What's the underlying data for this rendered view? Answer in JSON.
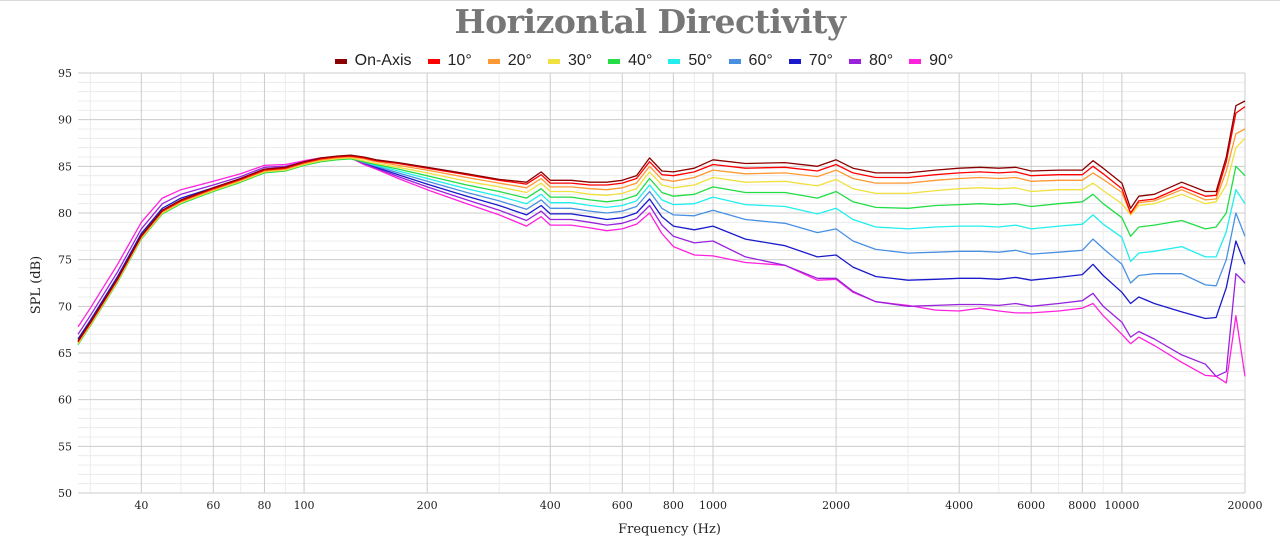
{
  "chart_data": {
    "type": "line",
    "title": "Horizontal Directivity",
    "xlabel": "Frequency (Hz)",
    "ylabel": "SPL (dB)",
    "x_scale": "log",
    "xlim": [
      28,
      20000
    ],
    "ylim": [
      50,
      95
    ],
    "grid": true,
    "legend_position": "top",
    "xticks": [
      40,
      60,
      80,
      100,
      200,
      400,
      600,
      800,
      1000,
      2000,
      4000,
      6000,
      8000,
      10000,
      20000
    ],
    "xtick_labels": [
      "40",
      "60",
      "80",
      "100",
      "200",
      "400",
      "600",
      "800",
      "1000",
      "2000",
      "4000",
      "6000",
      "8000",
      "10000",
      "20000"
    ],
    "yticks": [
      50,
      55,
      60,
      65,
      70,
      75,
      80,
      85,
      90,
      95
    ],
    "ytick_labels": [
      "50",
      "55",
      "60",
      "65",
      "70",
      "75",
      "80",
      "85",
      "90",
      "95"
    ],
    "x": [
      28,
      30,
      35,
      40,
      45,
      50,
      60,
      70,
      80,
      90,
      100,
      110,
      120,
      130,
      140,
      150,
      170,
      200,
      250,
      300,
      350,
      380,
      400,
      450,
      500,
      550,
      600,
      650,
      700,
      750,
      800,
      900,
      1000,
      1200,
      1500,
      1800,
      2000,
      2200,
      2500,
      3000,
      3500,
      4000,
      4500,
      5000,
      5500,
      6000,
      7000,
      8000,
      8500,
      9000,
      10000,
      10500,
      11000,
      12000,
      14000,
      16000,
      17000,
      18000,
      19000,
      20000
    ],
    "series": [
      {
        "name": "On-Axis",
        "color": "#8b0000",
        "values": [
          66.3,
          68.3,
          73.0,
          77.6,
          80.3,
          81.4,
          82.7,
          83.7,
          84.7,
          84.9,
          85.5,
          85.9,
          86.1,
          86.2,
          86.0,
          85.7,
          85.4,
          84.9,
          84.2,
          83.6,
          83.3,
          84.4,
          83.5,
          83.5,
          83.3,
          83.3,
          83.5,
          84.0,
          85.9,
          84.5,
          84.4,
          84.8,
          85.7,
          85.3,
          85.4,
          85.0,
          85.7,
          84.8,
          84.3,
          84.3,
          84.6,
          84.8,
          84.9,
          84.8,
          84.9,
          84.5,
          84.6,
          84.6,
          85.6,
          84.8,
          83.2,
          80.5,
          81.8,
          82.0,
          83.3,
          82.3,
          82.3,
          86.0,
          91.5,
          92.0
        ]
      },
      {
        "name": "10°",
        "color": "#ff0000",
        "values": [
          66.2,
          68.2,
          72.9,
          77.5,
          80.2,
          81.3,
          82.6,
          83.6,
          84.6,
          84.8,
          85.4,
          85.8,
          86.0,
          86.1,
          85.9,
          85.6,
          85.3,
          84.8,
          84.1,
          83.5,
          83.1,
          84.1,
          83.2,
          83.2,
          83.0,
          83.0,
          83.2,
          83.7,
          85.5,
          84.1,
          84.0,
          84.4,
          85.2,
          84.8,
          84.9,
          84.5,
          85.2,
          84.3,
          83.8,
          83.8,
          84.1,
          84.3,
          84.4,
          84.3,
          84.4,
          84.0,
          84.1,
          84.1,
          85.0,
          84.2,
          82.6,
          80.0,
          81.3,
          81.5,
          82.8,
          81.8,
          81.9,
          85.5,
          90.7,
          91.4
        ]
      },
      {
        "name": "20°",
        "color": "#ff9933",
        "values": [
          66.1,
          68.1,
          72.8,
          77.4,
          80.1,
          81.2,
          82.5,
          83.5,
          84.5,
          84.7,
          85.3,
          85.7,
          85.9,
          86.0,
          85.8,
          85.5,
          85.1,
          84.6,
          83.8,
          83.2,
          82.7,
          83.7,
          82.8,
          82.8,
          82.6,
          82.5,
          82.7,
          83.2,
          85.0,
          83.6,
          83.4,
          83.8,
          84.6,
          84.2,
          84.3,
          83.9,
          84.6,
          83.7,
          83.2,
          83.2,
          83.5,
          83.7,
          83.8,
          83.7,
          83.8,
          83.4,
          83.5,
          83.5,
          84.3,
          83.6,
          82.2,
          79.9,
          81.1,
          81.3,
          82.5,
          81.4,
          81.5,
          84.5,
          88.5,
          89.0
        ]
      },
      {
        "name": "30°",
        "color": "#f0e040",
        "values": [
          66.0,
          68.0,
          72.7,
          77.3,
          80.0,
          81.1,
          82.4,
          83.4,
          84.4,
          84.6,
          85.2,
          85.6,
          85.8,
          85.9,
          85.6,
          85.3,
          84.9,
          84.3,
          83.4,
          82.8,
          82.2,
          83.2,
          82.3,
          82.3,
          82.0,
          81.9,
          82.1,
          82.6,
          84.4,
          83.0,
          82.7,
          83.0,
          83.8,
          83.3,
          83.4,
          82.9,
          83.6,
          82.6,
          82.1,
          82.1,
          82.4,
          82.6,
          82.7,
          82.6,
          82.7,
          82.3,
          82.5,
          82.5,
          83.2,
          82.4,
          81.0,
          79.8,
          80.8,
          81.0,
          82.0,
          81.0,
          81.2,
          83.0,
          87.0,
          88.0
        ]
      },
      {
        "name": "40°",
        "color": "#22dd44",
        "values": [
          65.9,
          67.9,
          72.6,
          77.2,
          79.9,
          81.0,
          82.3,
          83.3,
          84.3,
          84.5,
          85.1,
          85.5,
          85.7,
          85.8,
          85.5,
          85.2,
          84.7,
          84.0,
          83.0,
          82.3,
          81.6,
          82.6,
          81.7,
          81.7,
          81.4,
          81.2,
          81.4,
          81.9,
          83.7,
          82.2,
          81.8,
          82.0,
          82.8,
          82.2,
          82.2,
          81.6,
          82.3,
          81.2,
          80.6,
          80.5,
          80.8,
          80.9,
          81.0,
          80.9,
          81.0,
          80.7,
          81.0,
          81.2,
          82.0,
          81.0,
          79.5,
          77.5,
          78.5,
          78.7,
          79.2,
          78.3,
          78.5,
          80.0,
          85.0,
          84.0
        ]
      },
      {
        "name": "50°",
        "color": "#22eeee",
        "values": [
          66.0,
          68.0,
          72.7,
          77.3,
          80.0,
          81.1,
          82.4,
          83.4,
          84.4,
          84.6,
          85.2,
          85.6,
          85.8,
          85.9,
          85.5,
          85.1,
          84.5,
          83.7,
          82.6,
          81.8,
          81.0,
          82.0,
          81.1,
          81.1,
          80.8,
          80.6,
          80.8,
          81.3,
          83.0,
          81.4,
          80.9,
          81.0,
          81.7,
          80.9,
          80.7,
          79.9,
          80.5,
          79.3,
          78.5,
          78.3,
          78.5,
          78.6,
          78.6,
          78.5,
          78.7,
          78.3,
          78.6,
          78.8,
          79.8,
          78.8,
          77.4,
          74.8,
          75.7,
          75.9,
          76.4,
          75.3,
          75.3,
          78.0,
          82.5,
          81.0
        ]
      },
      {
        "name": "60°",
        "color": "#4a90e2",
        "values": [
          66.2,
          68.2,
          72.9,
          77.5,
          80.2,
          81.3,
          82.5,
          83.5,
          84.5,
          84.7,
          85.3,
          85.6,
          85.8,
          85.9,
          85.4,
          85.0,
          84.3,
          83.4,
          82.2,
          81.3,
          80.4,
          81.4,
          80.5,
          80.5,
          80.2,
          80.0,
          80.2,
          80.7,
          82.3,
          80.5,
          79.8,
          79.7,
          80.3,
          79.3,
          78.9,
          77.9,
          78.3,
          77.0,
          76.1,
          75.7,
          75.8,
          75.9,
          75.9,
          75.8,
          76.0,
          75.6,
          75.8,
          76.0,
          77.2,
          76.2,
          74.5,
          72.5,
          73.3,
          73.5,
          73.5,
          72.3,
          72.2,
          75.0,
          80.0,
          77.5
        ]
      },
      {
        "name": "70°",
        "color": "#1a1acc",
        "values": [
          66.5,
          68.5,
          73.2,
          77.8,
          80.5,
          81.6,
          82.7,
          83.7,
          84.7,
          84.8,
          85.4,
          85.7,
          85.8,
          85.9,
          85.4,
          84.9,
          84.1,
          83.1,
          81.8,
          80.8,
          79.8,
          80.8,
          79.9,
          79.9,
          79.6,
          79.3,
          79.5,
          80.0,
          81.5,
          79.6,
          78.6,
          78.2,
          78.6,
          77.2,
          76.5,
          75.3,
          75.5,
          74.2,
          73.2,
          72.8,
          72.9,
          73.0,
          73.0,
          72.9,
          73.1,
          72.8,
          73.1,
          73.4,
          74.5,
          73.3,
          71.5,
          70.3,
          71.0,
          70.3,
          69.4,
          68.7,
          68.8,
          72.0,
          77.0,
          74.5
        ]
      },
      {
        "name": "80°",
        "color": "#9922dd",
        "values": [
          67.0,
          69.0,
          73.7,
          78.3,
          81.0,
          82.0,
          83.0,
          83.9,
          84.9,
          85.0,
          85.5,
          85.8,
          85.9,
          85.9,
          85.3,
          84.8,
          83.9,
          82.8,
          81.4,
          80.3,
          79.2,
          80.2,
          79.3,
          79.3,
          79.0,
          78.7,
          78.9,
          79.4,
          80.8,
          78.7,
          77.5,
          76.8,
          77.0,
          75.3,
          74.4,
          73.0,
          73.0,
          71.6,
          70.5,
          70.0,
          70.1,
          70.2,
          70.2,
          70.1,
          70.3,
          70.0,
          70.3,
          70.6,
          71.4,
          70.0,
          68.3,
          66.7,
          67.3,
          66.5,
          64.8,
          63.8,
          62.5,
          63.0,
          73.5,
          72.5
        ]
      },
      {
        "name": "90°",
        "color": "#ff22dd",
        "values": [
          67.8,
          69.8,
          74.5,
          79.0,
          81.6,
          82.5,
          83.4,
          84.2,
          85.1,
          85.2,
          85.6,
          85.9,
          85.9,
          85.9,
          85.2,
          84.7,
          83.7,
          82.5,
          81.0,
          79.8,
          78.6,
          79.6,
          78.7,
          78.7,
          78.4,
          78.1,
          78.3,
          78.8,
          80.0,
          77.8,
          76.4,
          75.5,
          75.4,
          74.7,
          74.4,
          72.8,
          72.9,
          71.5,
          70.5,
          70.1,
          69.6,
          69.5,
          69.8,
          69.5,
          69.3,
          69.3,
          69.5,
          69.8,
          70.3,
          69.0,
          67.0,
          66.0,
          66.7,
          65.8,
          64.0,
          62.6,
          62.5,
          61.8,
          69.0,
          62.5
        ]
      }
    ]
  }
}
